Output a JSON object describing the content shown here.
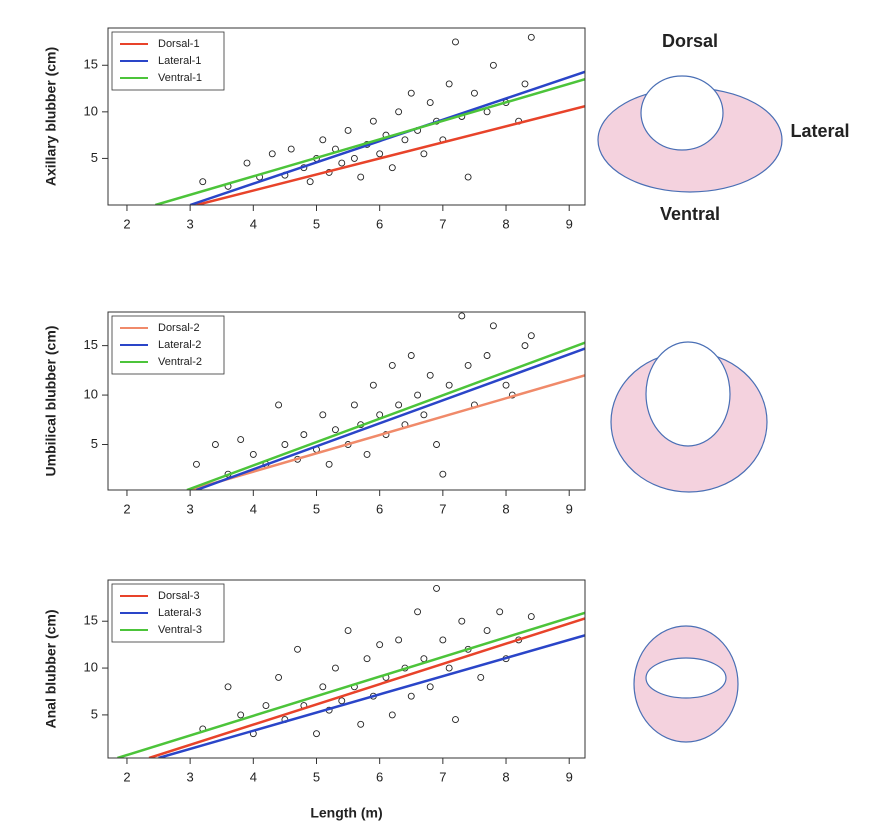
{
  "chart_data": [
    {
      "type": "scatter",
      "ylabel": "Axillary blubber (cm)",
      "xlim": [
        1.7,
        9.25
      ],
      "ylim": [
        0,
        19
      ],
      "xticks": [
        2,
        3,
        4,
        5,
        6,
        7,
        8,
        9
      ],
      "yticks": [
        5,
        10,
        15
      ],
      "legend": "top-left",
      "x": [
        3.2,
        3.6,
        3.9,
        4.1,
        4.3,
        4.5,
        4.6,
        4.8,
        4.9,
        5.0,
        5.1,
        5.2,
        5.3,
        5.4,
        5.5,
        5.6,
        5.7,
        5.8,
        5.9,
        6.0,
        6.1,
        6.2,
        6.3,
        6.4,
        6.5,
        6.6,
        6.7,
        6.8,
        6.9,
        7.0,
        7.1,
        7.2,
        7.3,
        7.4,
        7.5,
        7.7,
        7.8,
        8.0,
        8.2,
        8.4,
        8.3
      ],
      "values": [
        2.5,
        2,
        4.5,
        3,
        5.5,
        3.2,
        6,
        4,
        2.5,
        5,
        7,
        3.5,
        6,
        4.5,
        8,
        5,
        3,
        6.5,
        9,
        5.5,
        7.5,
        4,
        10,
        7,
        12,
        8,
        5.5,
        11,
        9,
        7,
        13,
        17.5,
        9.5,
        3,
        12,
        10,
        15,
        11,
        9,
        18,
        13
      ],
      "series": [
        {
          "name": "Dorsal-1",
          "color": "#e8432a",
          "x": [
            3.1,
            9.25
          ],
          "values": [
            0,
            10.6
          ]
        },
        {
          "name": "Lateral-1",
          "color": "#2a45c8",
          "x": [
            3.0,
            9.25
          ],
          "values": [
            0,
            14.3
          ]
        },
        {
          "name": "Ventral-1",
          "color": "#4cc43a",
          "x": [
            2.45,
            9.25
          ],
          "values": [
            0,
            13.5
          ]
        }
      ]
    },
    {
      "type": "scatter",
      "ylabel": "Umbilical blubber (cm)",
      "xlim": [
        1.7,
        9.25
      ],
      "ylim": [
        0.4,
        18.4
      ],
      "xticks": [
        2,
        3,
        4,
        5,
        6,
        7,
        8,
        9
      ],
      "yticks": [
        5,
        10,
        15
      ],
      "legend": "top-left",
      "x": [
        3.1,
        3.4,
        3.6,
        3.8,
        4.0,
        4.2,
        4.4,
        4.5,
        4.7,
        4.8,
        5.0,
        5.1,
        5.2,
        5.3,
        5.5,
        5.6,
        5.7,
        5.8,
        5.9,
        6.0,
        6.1,
        6.2,
        6.3,
        6.4,
        6.5,
        6.6,
        6.7,
        6.8,
        6.9,
        7.0,
        7.1,
        7.3,
        7.4,
        7.5,
        7.7,
        7.8,
        8.0,
        8.1,
        8.3,
        8.4
      ],
      "values": [
        3,
        5,
        2,
        5.5,
        4,
        3,
        9,
        5,
        3.5,
        6,
        4.5,
        8,
        3,
        6.5,
        5,
        9,
        7,
        4,
        11,
        8,
        6,
        13,
        9,
        7,
        14,
        10,
        8,
        12,
        5,
        2,
        11,
        18,
        13,
        9,
        14,
        17,
        11,
        10,
        15,
        16
      ],
      "series": [
        {
          "name": "Dorsal-2",
          "color": "#f08a6a",
          "x": [
            3.0,
            9.25
          ],
          "values": [
            0.4,
            12
          ]
        },
        {
          "name": "Lateral-2",
          "color": "#2a45c8",
          "x": [
            3.1,
            9.25
          ],
          "values": [
            0.4,
            14.7
          ]
        },
        {
          "name": "Ventral-2",
          "color": "#4cc43a",
          "x": [
            2.95,
            9.25
          ],
          "values": [
            0.4,
            15.3
          ]
        }
      ]
    },
    {
      "type": "scatter",
      "ylabel": "Anal blubber (cm)",
      "xlabel": "Length (m)",
      "xlim": [
        1.7,
        9.25
      ],
      "ylim": [
        0.4,
        19.4
      ],
      "xticks": [
        2,
        3,
        4,
        5,
        6,
        7,
        8,
        9
      ],
      "yticks": [
        5,
        10,
        15
      ],
      "legend": "top-left",
      "x": [
        3.2,
        3.6,
        3.8,
        4.0,
        4.2,
        4.4,
        4.5,
        4.7,
        4.8,
        5.0,
        5.1,
        5.2,
        5.3,
        5.4,
        5.5,
        5.6,
        5.7,
        5.8,
        5.9,
        6.0,
        6.1,
        6.2,
        6.3,
        6.4,
        6.5,
        6.6,
        6.7,
        6.8,
        6.9,
        7.0,
        7.1,
        7.2,
        7.3,
        7.4,
        7.6,
        7.7,
        7.9,
        8.0,
        8.2,
        8.4
      ],
      "values": [
        3.5,
        8,
        5,
        3,
        6,
        9,
        4.5,
        12,
        6,
        3,
        8,
        5.5,
        10,
        6.5,
        14,
        8,
        4,
        11,
        7,
        12.5,
        9,
        5,
        13,
        10,
        7,
        16,
        11,
        8,
        18.5,
        13,
        10,
        4.5,
        15,
        12,
        9,
        14,
        16,
        11,
        13,
        15.5
      ],
      "series": [
        {
          "name": "Dorsal-3",
          "color": "#e8432a",
          "x": [
            2.35,
            9.25
          ],
          "values": [
            0.4,
            15.3
          ]
        },
        {
          "name": "Lateral-3",
          "color": "#2a45c8",
          "x": [
            2.5,
            9.25
          ],
          "values": [
            0.4,
            13.5
          ]
        },
        {
          "name": "Ventral-3",
          "color": "#4cc43a",
          "x": [
            1.85,
            9.25
          ],
          "values": [
            0.4,
            15.9
          ]
        }
      ]
    }
  ],
  "diagram": {
    "dorsal": "Dorsal",
    "lateral": "Lateral",
    "ventral": "Ventral"
  }
}
